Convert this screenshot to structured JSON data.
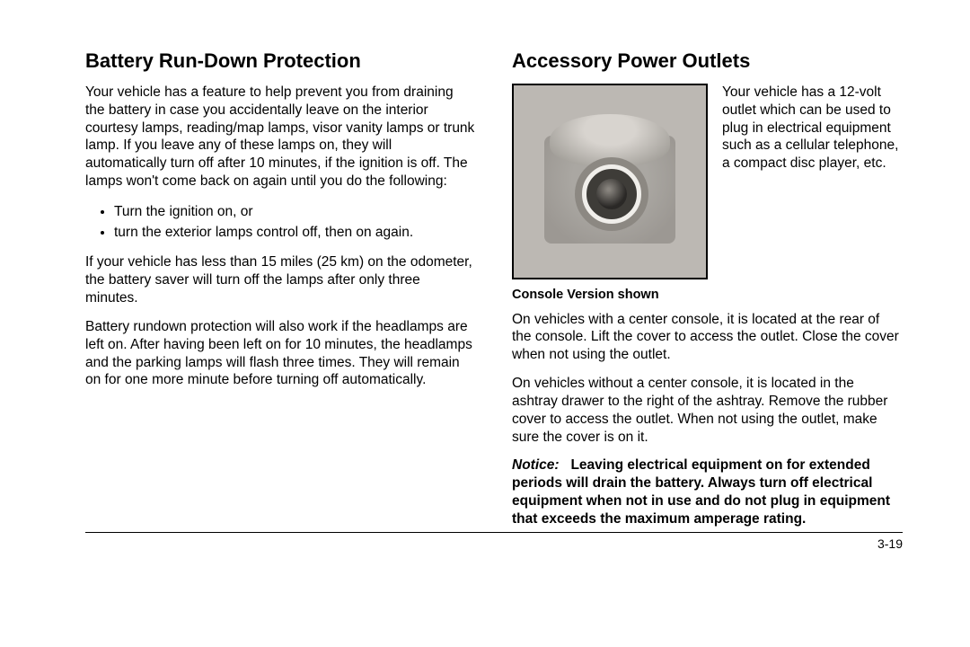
{
  "left": {
    "heading": "Battery Run-Down Protection",
    "p1": "Your vehicle has a feature to help prevent you from draining the battery in case you accidentally leave on the interior courtesy lamps, reading/map lamps, visor vanity lamps or trunk lamp. If you leave any of these lamps on, they will automatically turn off after 10 minutes, if the ignition is off. The lamps won't come back on again until you do the following:",
    "bullets": [
      "Turn the ignition on, or",
      "turn the exterior lamps control off, then on again."
    ],
    "p2": "If your vehicle has less than 15 miles (25 km) on the odometer, the battery saver will turn off the lamps after only three minutes.",
    "p3": "Battery rundown protection will also work if the headlamps are left on. After having been left on for 10 minutes, the headlamps and the parking lamps will flash three times. They will remain on for one more minute before turning off automatically."
  },
  "right": {
    "heading": "Accessory Power Outlets",
    "side": "Your vehicle has a 12-volt outlet which can be used to plug in electrical equipment such as a cellular telephone, a compact disc player, etc.",
    "caption": "Console Version shown",
    "p1": "On vehicles with a center console, it is located at the rear of the console. Lift the cover to access the outlet. Close the cover when not using the outlet.",
    "p2": "On vehicles without a center console, it is located in the ashtray drawer to the right of the ashtray. Remove the rubber cover to access the outlet. When not using the outlet, make sure the cover is on it.",
    "notice_lead": "Notice:",
    "notice_body": "Leaving electrical equipment on for extended periods will drain the battery. Always turn off electrical equipment when not in use and do not plug in equipment that exceeds the maximum amperage rating."
  },
  "page_number": "3-19"
}
